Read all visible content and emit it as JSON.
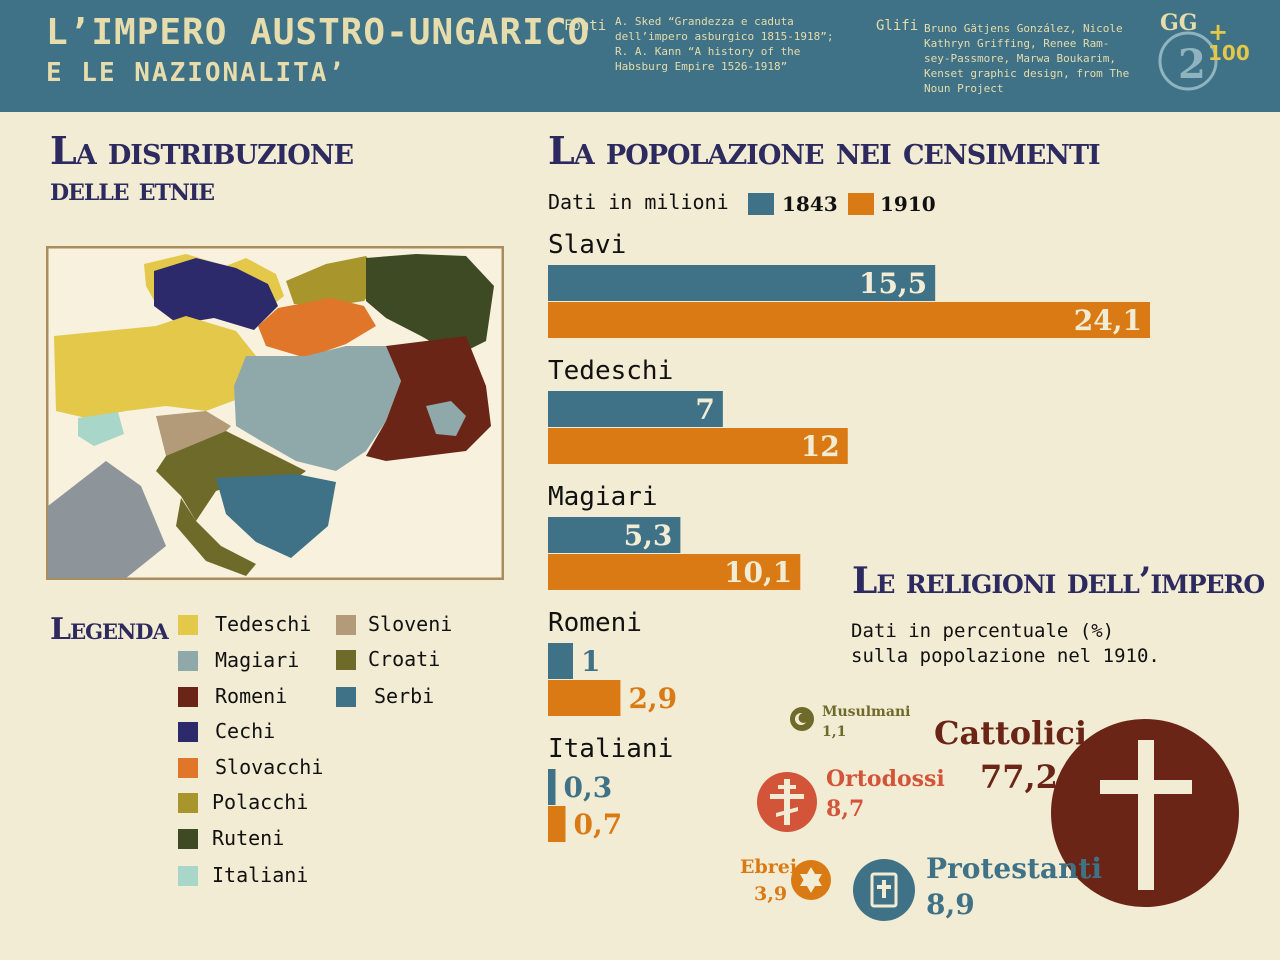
{
  "header": {
    "title_line1": "L’IMPERO AUSTRO-UNGARICO",
    "title_line2": "E LE NAZIONALITA’",
    "sources_label": "Fonti",
    "sources_text": "A. Sked “Grandezza e caduta\ndell’impero asburgico 1815-1918”;\nR. A. Kann “A history of the\nHabsburg Empire 1526-1918”",
    "glyphs_label": "Glifi",
    "glyphs_text": "Bruno Gätjens González, Nicole\nKathryn Griffing, Renee Ram-\nsey-Passmore, Marwa Boukarim,\nKenset graphic design, from The\nNoun Project",
    "logo_text_top": "GG",
    "logo_text_big": "2",
    "logo_text_small": "100"
  },
  "map_section": {
    "title_line1": "La distribuzione",
    "title_line2": "delle etnie"
  },
  "legend": {
    "title": "Legenda",
    "items": [
      {
        "label": "Tedeschi",
        "color": "#e3c84a"
      },
      {
        "label": "Magiari",
        "color": "#8fa9ab"
      },
      {
        "label": "Romeni",
        "color": "#6b2516"
      },
      {
        "label": "Cechi",
        "color": "#2c2a6b"
      },
      {
        "label": "Slovacchi",
        "color": "#e0762a"
      },
      {
        "label": "Polacchi",
        "color": "#a8962c"
      },
      {
        "label": "Ruteni",
        "color": "#3d4a23"
      },
      {
        "label": "Italiani",
        "color": "#a8d6c9"
      },
      {
        "label": "Sloveni",
        "color": "#b39a78"
      },
      {
        "label": "Croati",
        "color": "#6e6a2a"
      },
      {
        "label": "Serbi",
        "color": "#3f7286"
      }
    ]
  },
  "census": {
    "title": "La popolazione nei censimenti",
    "subtitle": "Dati in milioni"
  },
  "chart_data": {
    "type": "bar",
    "orientation": "horizontal",
    "title": "La popolazione nei censimenti",
    "unit": "Dati in milioni",
    "categories": [
      "Slavi",
      "Tedeschi",
      "Magiari",
      "Romeni",
      "Italiani"
    ],
    "series": [
      {
        "name": "1843",
        "color": "#3f7286",
        "values": [
          15.5,
          7,
          5.3,
          1,
          0.3
        ],
        "labels": [
          "15,5",
          "7",
          "5,3",
          "1",
          "0,3"
        ]
      },
      {
        "name": "1910",
        "color": "#d97a14",
        "values": [
          24.1,
          12,
          10.1,
          2.9,
          0.7
        ],
        "labels": [
          "24,1",
          "12",
          "10,1",
          "2,9",
          "0,7"
        ]
      }
    ]
  },
  "religions": {
    "title": "Le religioni dell’impero",
    "subtitle_line1": "Dati in percentuale (%)",
    "subtitle_line2": "sulla popolazione nel 1910.",
    "items": [
      {
        "name": "Cattolici",
        "value": "77,2",
        "color": "#6b2516"
      },
      {
        "name": "Protestanti",
        "value": "8,9",
        "color": "#3f7286"
      },
      {
        "name": "Ortodossi",
        "value": "8,7",
        "color": "#d2553a"
      },
      {
        "name": "Ebrei",
        "value": "3,9",
        "color": "#d97a14"
      },
      {
        "name": "Musulmani",
        "value": "1,1",
        "color": "#6e6a2a"
      }
    ]
  }
}
